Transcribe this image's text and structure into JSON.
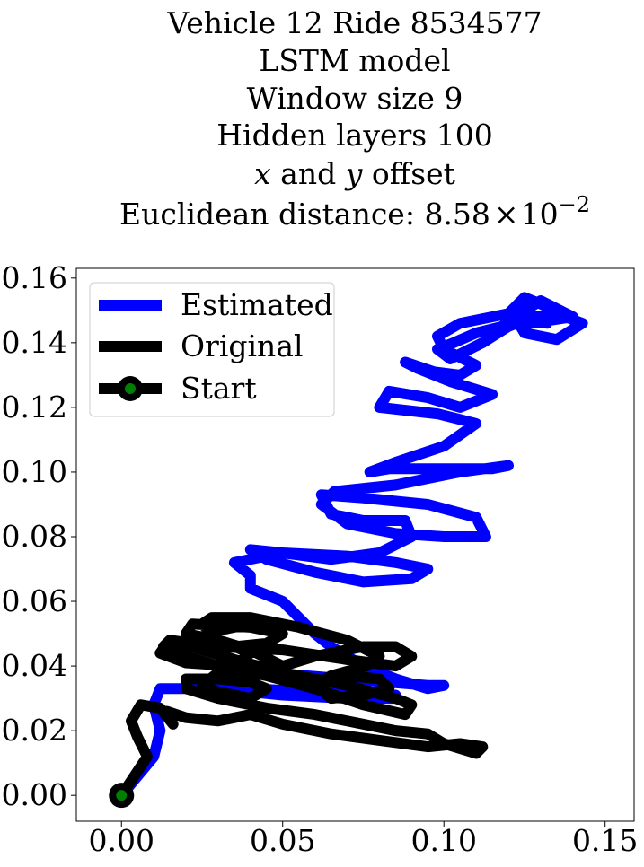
{
  "chart_data": {
    "type": "line",
    "title_lines": [
      "Vehicle 12 Ride 8534577",
      "LSTM model",
      "Window size 9",
      "Hidden layers 100"
    ],
    "offset_line": {
      "x_var": "x",
      "and_word": " and ",
      "y_var": "y",
      "suffix": " offset"
    },
    "distance_line": {
      "prefix": "Euclidean distance: 8.58",
      "times": "×",
      "base": "10",
      "exponent": "−2"
    },
    "xlim": [
      -0.014,
      0.159
    ],
    "ylim": [
      -0.008,
      0.163
    ],
    "x_ticks": [
      0.0,
      0.05,
      0.1,
      0.15
    ],
    "x_tick_labels": [
      "0.00",
      "0.05",
      "0.10",
      "0.15"
    ],
    "y_ticks": [
      0.0,
      0.02,
      0.04,
      0.06,
      0.08,
      0.1,
      0.12,
      0.14,
      0.16
    ],
    "y_tick_labels": [
      "0.00",
      "0.02",
      "0.04",
      "0.06",
      "0.08",
      "0.10",
      "0.12",
      "0.14",
      "0.16"
    ],
    "grid": false,
    "legend_position": "top-left",
    "series": [
      {
        "name": "Estimated",
        "color": "#0000ff",
        "x": [
          0.0,
          0.01,
          0.012,
          0.01,
          0.012,
          0.03,
          0.05,
          0.07,
          0.085,
          0.085,
          0.06,
          0.04,
          0.035,
          0.045,
          0.07,
          0.095,
          0.1,
          0.095,
          0.085,
          0.075,
          0.07,
          0.065,
          0.06,
          0.055,
          0.05,
          0.04,
          0.04,
          0.035,
          0.05,
          0.07,
          0.085,
          0.095,
          0.09,
          0.075,
          0.06,
          0.045,
          0.04,
          0.05,
          0.065,
          0.08,
          0.09,
          0.088,
          0.075,
          0.065,
          0.062,
          0.075,
          0.095,
          0.11,
          0.113,
          0.1,
          0.085,
          0.07,
          0.062,
          0.066,
          0.085,
          0.105,
          0.12,
          0.115,
          0.1,
          0.083,
          0.077,
          0.085,
          0.1,
          0.11,
          0.098,
          0.08,
          0.083,
          0.095,
          0.105,
          0.115,
          0.102,
          0.092,
          0.088,
          0.097,
          0.105,
          0.11,
          0.1,
          0.098,
          0.105,
          0.115,
          0.125,
          0.118,
          0.11,
          0.103,
          0.098,
          0.102,
          0.112,
          0.12,
          0.128,
          0.135,
          0.143,
          0.135,
          0.125,
          0.122,
          0.13,
          0.14,
          0.127,
          0.12,
          0.125,
          0.135,
          0.132,
          0.125,
          0.12
        ],
        "y": [
          0.0,
          0.012,
          0.02,
          0.028,
          0.033,
          0.033,
          0.031,
          0.03,
          0.03,
          0.031,
          0.032,
          0.033,
          0.036,
          0.038,
          0.036,
          0.034,
          0.034,
          0.033,
          0.036,
          0.04,
          0.043,
          0.046,
          0.05,
          0.055,
          0.06,
          0.064,
          0.068,
          0.072,
          0.075,
          0.074,
          0.072,
          0.07,
          0.067,
          0.066,
          0.069,
          0.073,
          0.076,
          0.075,
          0.073,
          0.075,
          0.08,
          0.085,
          0.085,
          0.087,
          0.093,
          0.092,
          0.09,
          0.086,
          0.08,
          0.08,
          0.081,
          0.084,
          0.09,
          0.094,
          0.096,
          0.1,
          0.102,
          0.101,
          0.101,
          0.101,
          0.1,
          0.103,
          0.108,
          0.115,
          0.118,
          0.12,
          0.125,
          0.123,
          0.12,
          0.124,
          0.128,
          0.132,
          0.134,
          0.131,
          0.13,
          0.133,
          0.138,
          0.142,
          0.146,
          0.148,
          0.15,
          0.145,
          0.143,
          0.14,
          0.138,
          0.135,
          0.14,
          0.145,
          0.148,
          0.149,
          0.146,
          0.141,
          0.143,
          0.148,
          0.153,
          0.148,
          0.146,
          0.149,
          0.154,
          0.15,
          0.146,
          0.148,
          0.149
        ]
      },
      {
        "name": "Original",
        "color": "#000000",
        "x": [
          0.0,
          0.008,
          0.005,
          0.003,
          0.006,
          0.012,
          0.016,
          0.014,
          0.02,
          0.03,
          0.04,
          0.05,
          0.065,
          0.08,
          0.095,
          0.105,
          0.112,
          0.11,
          0.1,
          0.095,
          0.085,
          0.075,
          0.06,
          0.045,
          0.03,
          0.02,
          0.02,
          0.03,
          0.04,
          0.045,
          0.04,
          0.03,
          0.025,
          0.03,
          0.05,
          0.07,
          0.085,
          0.09,
          0.088,
          0.075,
          0.06,
          0.045,
          0.03,
          0.02,
          0.013,
          0.015,
          0.03,
          0.05,
          0.07,
          0.085,
          0.09,
          0.085,
          0.075,
          0.06,
          0.05,
          0.04,
          0.03,
          0.025,
          0.028,
          0.04,
          0.055,
          0.07,
          0.08,
          0.076,
          0.065,
          0.06,
          0.065,
          0.075,
          0.083,
          0.08,
          0.07,
          0.06,
          0.05,
          0.035,
          0.025,
          0.015,
          0.012,
          0.02,
          0.035,
          0.04,
          0.03,
          0.02,
          0.022,
          0.04,
          0.05,
          0.045,
          0.035,
          0.025,
          0.03,
          0.04
        ],
        "y": [
          0.0,
          0.012,
          0.018,
          0.023,
          0.028,
          0.027,
          0.022,
          0.026,
          0.024,
          0.023,
          0.025,
          0.022,
          0.019,
          0.017,
          0.015,
          0.016,
          0.015,
          0.013,
          0.016,
          0.019,
          0.02,
          0.022,
          0.025,
          0.027,
          0.03,
          0.033,
          0.036,
          0.036,
          0.035,
          0.033,
          0.03,
          0.032,
          0.034,
          0.038,
          0.038,
          0.034,
          0.03,
          0.028,
          0.025,
          0.028,
          0.033,
          0.037,
          0.04,
          0.043,
          0.046,
          0.048,
          0.046,
          0.045,
          0.042,
          0.04,
          0.043,
          0.046,
          0.046,
          0.043,
          0.04,
          0.045,
          0.048,
          0.053,
          0.055,
          0.055,
          0.052,
          0.048,
          0.043,
          0.04,
          0.037,
          0.034,
          0.03,
          0.031,
          0.033,
          0.036,
          0.037,
          0.035,
          0.038,
          0.042,
          0.045,
          0.048,
          0.044,
          0.041,
          0.04,
          0.044,
          0.048,
          0.05,
          0.053,
          0.052,
          0.05,
          0.047,
          0.046,
          0.048,
          0.051,
          0.053
        ]
      }
    ],
    "start": {
      "name": "Start",
      "x": 0.0,
      "y": 0.0,
      "ring_color": "#000000",
      "center_color": "#008000"
    }
  }
}
